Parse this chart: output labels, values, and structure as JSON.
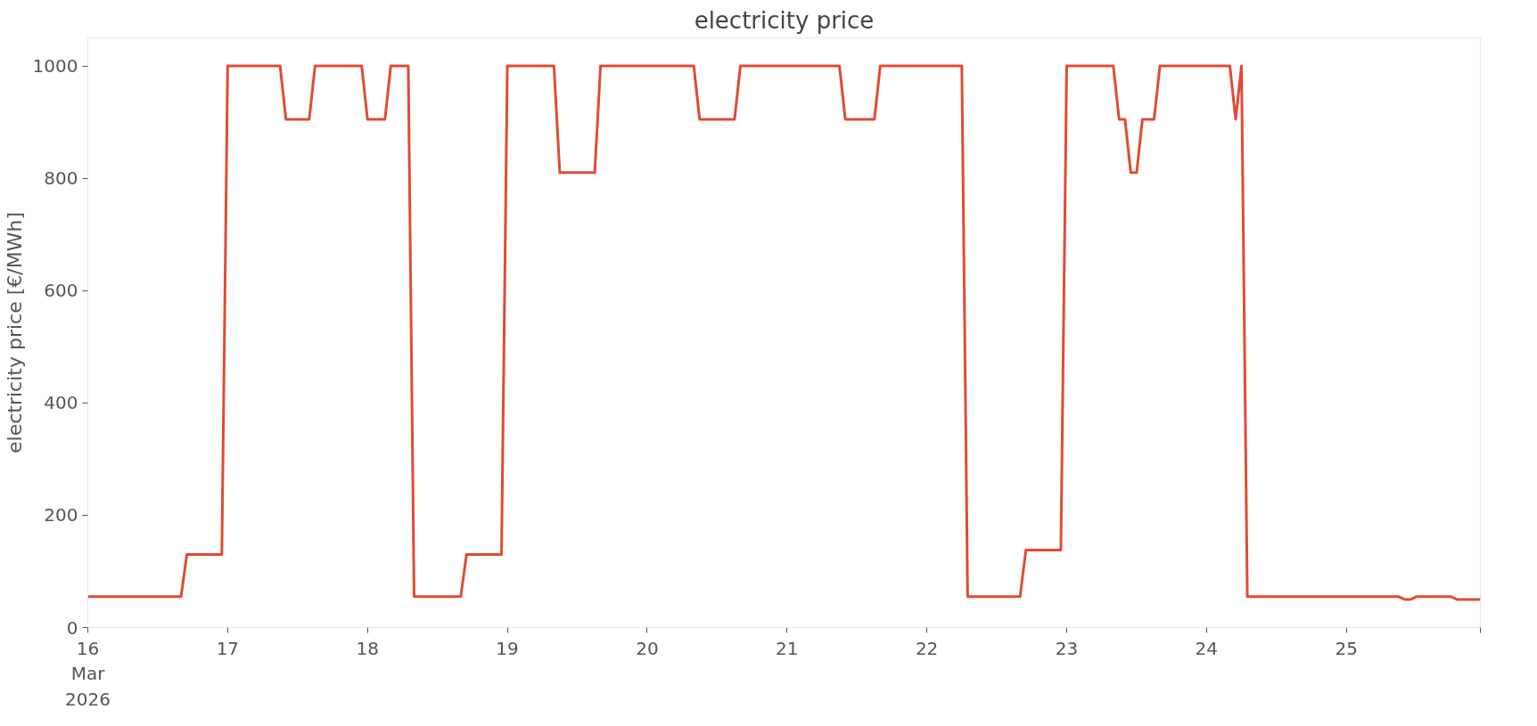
{
  "chart_data": {
    "type": "line",
    "title": "electricity price",
    "ylabel": "electricity price [€/MWh]",
    "x": [
      "2026-03-16T00:00",
      "2026-03-16T16:00",
      "2026-03-16T17:00",
      "2026-03-16T23:00",
      "2026-03-17T00:00",
      "2026-03-17T09:00",
      "2026-03-17T10:00",
      "2026-03-17T14:00",
      "2026-03-17T15:00",
      "2026-03-17T23:00",
      "2026-03-18T00:00",
      "2026-03-18T03:00",
      "2026-03-18T04:00",
      "2026-03-18T07:00",
      "2026-03-18T08:00",
      "2026-03-18T16:00",
      "2026-03-18T17:00",
      "2026-03-18T23:00",
      "2026-03-19T00:00",
      "2026-03-19T08:00",
      "2026-03-19T09:00",
      "2026-03-19T15:00",
      "2026-03-19T16:00",
      "2026-03-20T08:00",
      "2026-03-20T09:00",
      "2026-03-20T15:00",
      "2026-03-20T16:00",
      "2026-03-21T09:00",
      "2026-03-21T10:00",
      "2026-03-21T15:00",
      "2026-03-21T16:00",
      "2026-03-22T06:00",
      "2026-03-22T07:00",
      "2026-03-22T16:00",
      "2026-03-22T17:00",
      "2026-03-22T23:00",
      "2026-03-23T00:00",
      "2026-03-23T08:00",
      "2026-03-23T09:00",
      "2026-03-23T10:00",
      "2026-03-23T11:00",
      "2026-03-23T12:00",
      "2026-03-23T13:00",
      "2026-03-23T15:00",
      "2026-03-23T16:00",
      "2026-03-24T04:00",
      "2026-03-24T05:00",
      "2026-03-24T06:00",
      "2026-03-24T07:00",
      "2026-03-25T09:00",
      "2026-03-25T10:00",
      "2026-03-25T11:00",
      "2026-03-25T12:00",
      "2026-03-25T18:00",
      "2026-03-25T19:00",
      "2026-03-25T23:00"
    ],
    "series": [
      {
        "color": "#e24a33",
        "values": [
          55,
          55,
          130,
          130,
          1000,
          1000,
          905,
          905,
          1000,
          1000,
          905,
          905,
          1000,
          1000,
          55,
          55,
          130,
          130,
          1000,
          1000,
          810,
          810,
          1000,
          1000,
          905,
          905,
          1000,
          1000,
          905,
          905,
          1000,
          1000,
          55,
          55,
          138,
          138,
          1000,
          1000,
          905,
          905,
          810,
          810,
          905,
          905,
          1000,
          1000,
          905,
          1000,
          55,
          55,
          50,
          50,
          55,
          55,
          50,
          50
        ]
      }
    ],
    "xlim": [
      "2026-03-16T00:00",
      "2026-03-25T23:00"
    ],
    "xticks": [
      {
        "value": "2026-03-16",
        "label": "16\nMar\n2026"
      },
      {
        "value": "2026-03-17",
        "label": "17"
      },
      {
        "value": "2026-03-18",
        "label": "18"
      },
      {
        "value": "2026-03-19",
        "label": "19"
      },
      {
        "value": "2026-03-20",
        "label": "20"
      },
      {
        "value": "2026-03-21",
        "label": "21"
      },
      {
        "value": "2026-03-22",
        "label": "22"
      },
      {
        "value": "2026-03-23",
        "label": "23"
      },
      {
        "value": "2026-03-24",
        "label": "24"
      },
      {
        "value": "2026-03-25",
        "label": "25"
      },
      {
        "value": "2026-03-25T23:00",
        "label": null
      }
    ],
    "ylim": [
      0,
      1050
    ],
    "yticks": [
      0,
      200,
      400,
      600,
      800,
      1000
    ],
    "grid": false,
    "line_style": "solid",
    "marker": "none"
  }
}
